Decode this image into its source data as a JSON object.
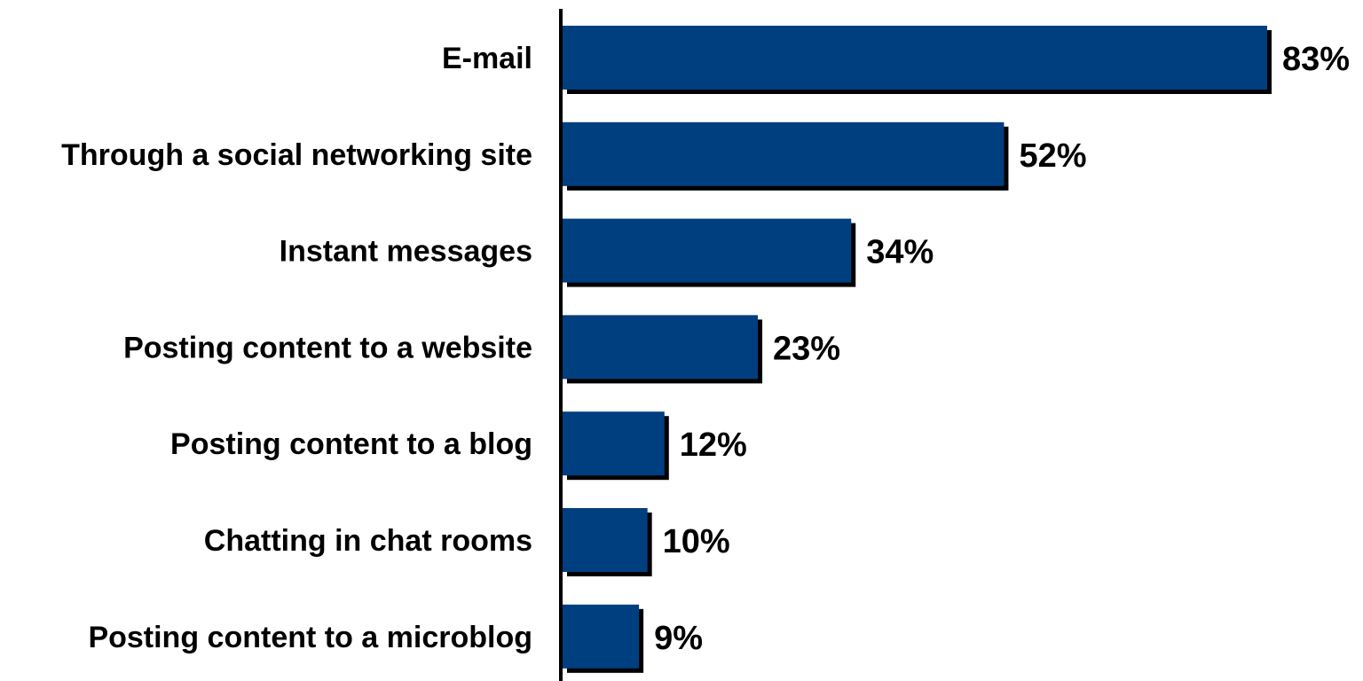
{
  "chart_data": {
    "type": "bar",
    "orientation": "horizontal",
    "categories": [
      "E-mail",
      "Through a social networking site",
      "Instant messages",
      "Posting content to a website",
      "Posting content to a blog",
      "Chatting in chat rooms",
      "Posting content to a microblog"
    ],
    "values": [
      83,
      52,
      34,
      23,
      12,
      10,
      9
    ],
    "value_labels": [
      "83%",
      "52%",
      "34%",
      "23%",
      "12%",
      "10%",
      "9%"
    ],
    "value_unit": "%",
    "xlim": [
      0,
      83
    ],
    "grid": false,
    "legend": "none",
    "bar_color": "#003F7F",
    "shadow_color": "#000000",
    "axis_color": "#000000"
  }
}
